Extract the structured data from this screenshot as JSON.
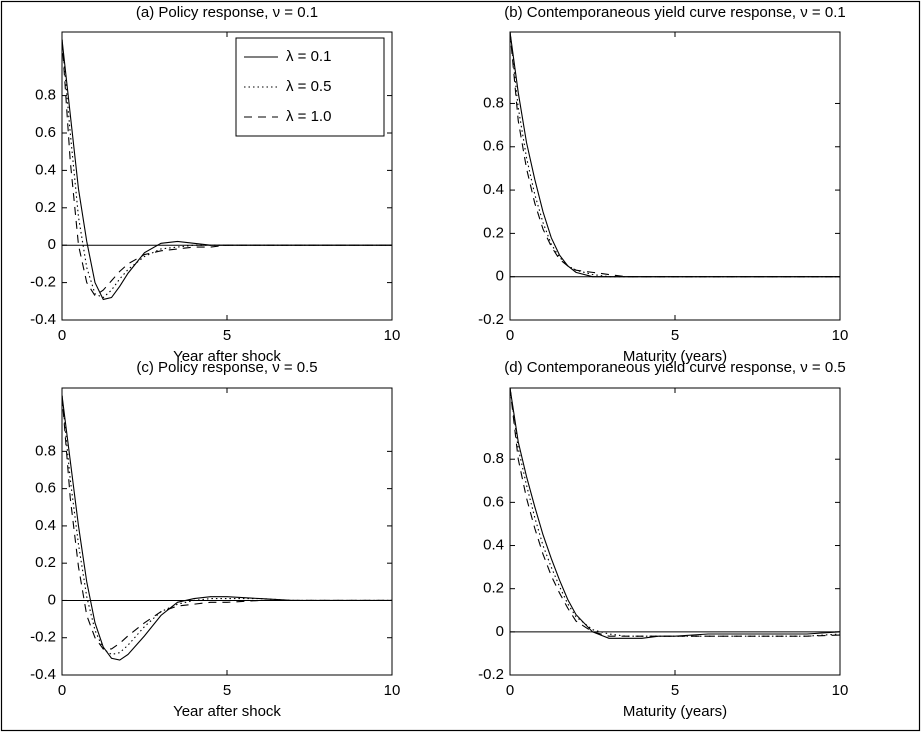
{
  "chart_data": [
    {
      "type": "line",
      "title": "(a) Policy response, ν = 0.1",
      "x_label": "Year after shock",
      "x": [
        0,
        0.25,
        0.5,
        0.75,
        1,
        1.25,
        1.5,
        1.75,
        2,
        2.5,
        3,
        3.5,
        4,
        4.5,
        5,
        6,
        7,
        8,
        9,
        10
      ],
      "xlim": [
        0,
        10
      ],
      "xticks": [
        0,
        5,
        10
      ],
      "ylim": [
        -0.4,
        1.14
      ],
      "yticks": [
        -0.4,
        -0.2,
        0,
        0.2,
        0.4,
        0.6,
        0.8
      ],
      "legend": "upper right",
      "series": [
        {
          "name": "λ = 0.1",
          "color": "#000000",
          "style": "solid",
          "values": [
            1.1,
            0.7,
            0.3,
            0.02,
            -0.2,
            -0.29,
            -0.28,
            -0.22,
            -0.15,
            -0.04,
            0.01,
            0.02,
            0.01,
            0,
            0,
            0,
            0,
            0,
            0,
            0
          ]
        },
        {
          "name": "λ = 0.5",
          "color": "#000000",
          "style": "dotted",
          "values": [
            1.1,
            0.6,
            0.15,
            -0.12,
            -0.26,
            -0.28,
            -0.24,
            -0.18,
            -0.13,
            -0.06,
            -0.02,
            -0.01,
            0,
            0,
            0,
            0,
            0,
            0,
            0,
            0
          ]
        },
        {
          "name": "λ = 1.0",
          "color": "#000000",
          "style": "dashed",
          "values": [
            1.1,
            0.45,
            0,
            -0.2,
            -0.27,
            -0.24,
            -0.19,
            -0.14,
            -0.1,
            -0.05,
            -0.03,
            -0.02,
            -0.01,
            -0.01,
            0,
            0,
            0,
            0,
            0,
            0
          ]
        }
      ]
    },
    {
      "type": "line",
      "title": "(b) Contemporaneous yield curve response, ν = 0.1",
      "x_label": "Maturity (years)",
      "x": [
        0,
        0.25,
        0.5,
        0.75,
        1,
        1.25,
        1.5,
        1.75,
        2,
        2.5,
        3,
        3.5,
        4,
        4.5,
        5,
        6,
        7,
        8,
        9,
        10
      ],
      "xlim": [
        0,
        10
      ],
      "xticks": [
        0,
        5,
        10
      ],
      "ylim": [
        -0.2,
        1.13
      ],
      "yticks": [
        -0.2,
        0,
        0.2,
        0.4,
        0.6,
        0.8
      ],
      "series": [
        {
          "color": "#000000",
          "style": "solid",
          "values": [
            1.13,
            0.85,
            0.62,
            0.45,
            0.3,
            0.18,
            0.1,
            0.05,
            0.02,
            0,
            0,
            0,
            0,
            0,
            0,
            0,
            0,
            0,
            0,
            0
          ]
        },
        {
          "color": "#000000",
          "style": "dotted",
          "values": [
            1.13,
            0.78,
            0.55,
            0.38,
            0.25,
            0.15,
            0.09,
            0.05,
            0.03,
            0.01,
            0,
            0,
            0,
            0,
            0,
            0,
            0,
            0,
            0,
            0
          ]
        },
        {
          "color": "#000000",
          "style": "dashed",
          "values": [
            1.13,
            0.72,
            0.5,
            0.34,
            0.22,
            0.14,
            0.08,
            0.05,
            0.03,
            0.02,
            0.01,
            0,
            0,
            0,
            0,
            0,
            0,
            0,
            0,
            0
          ]
        }
      ]
    },
    {
      "type": "line",
      "title": "(c) Policy response, ν = 0.5",
      "x_label": "Year after shock",
      "x": [
        0,
        0.25,
        0.5,
        0.75,
        1,
        1.25,
        1.5,
        1.75,
        2,
        2.5,
        3,
        3.5,
        4,
        4.5,
        5,
        6,
        7,
        8,
        9,
        10
      ],
      "xlim": [
        0,
        10
      ],
      "xticks": [
        0,
        5,
        10
      ],
      "ylim": [
        -0.4,
        1.14
      ],
      "yticks": [
        -0.4,
        -0.2,
        0,
        0.2,
        0.4,
        0.6,
        0.8
      ],
      "series": [
        {
          "color": "#000000",
          "style": "solid",
          "values": [
            1.1,
            0.75,
            0.4,
            0.1,
            -0.12,
            -0.25,
            -0.31,
            -0.32,
            -0.29,
            -0.19,
            -0.08,
            -0.01,
            0.01,
            0.02,
            0.02,
            0.01,
            0,
            0,
            0,
            0
          ]
        },
        {
          "color": "#000000",
          "style": "dotted",
          "values": [
            1.1,
            0.65,
            0.3,
            0.02,
            -0.16,
            -0.26,
            -0.29,
            -0.28,
            -0.24,
            -0.14,
            -0.06,
            -0.02,
            0,
            0.01,
            0.01,
            0.01,
            0,
            0,
            0,
            0
          ]
        },
        {
          "color": "#000000",
          "style": "dashed",
          "values": [
            1.1,
            0.55,
            0.18,
            -0.08,
            -0.2,
            -0.26,
            -0.26,
            -0.23,
            -0.19,
            -0.12,
            -0.06,
            -0.03,
            -0.02,
            -0.01,
            -0.01,
            0,
            0,
            0,
            0,
            0
          ]
        }
      ]
    },
    {
      "type": "line",
      "title": "(d) Contemporaneous yield curve response, ν = 0.5",
      "x_label": "Maturity (years)",
      "x": [
        0,
        0.25,
        0.5,
        0.75,
        1,
        1.25,
        1.5,
        1.75,
        2,
        2.5,
        3,
        3.5,
        4,
        4.5,
        5,
        6,
        7,
        8,
        9,
        10
      ],
      "xlim": [
        0,
        10
      ],
      "xticks": [
        0,
        5,
        10
      ],
      "ylim": [
        -0.2,
        1.13
      ],
      "yticks": [
        -0.2,
        0,
        0.2,
        0.4,
        0.6,
        0.8
      ],
      "series": [
        {
          "color": "#000000",
          "style": "solid",
          "values": [
            1.13,
            0.88,
            0.72,
            0.58,
            0.45,
            0.34,
            0.24,
            0.15,
            0.08,
            0,
            -0.03,
            -0.03,
            -0.03,
            -0.02,
            -0.02,
            -0.01,
            -0.01,
            -0.01,
            -0.01,
            0
          ]
        },
        {
          "color": "#000000",
          "style": "dotted",
          "values": [
            1.13,
            0.85,
            0.68,
            0.53,
            0.4,
            0.3,
            0.21,
            0.13,
            0.07,
            0.01,
            -0.01,
            -0.02,
            -0.02,
            -0.02,
            -0.02,
            -0.02,
            -0.02,
            -0.02,
            -0.02,
            -0.01
          ]
        },
        {
          "color": "#000000",
          "style": "dashed",
          "values": [
            1.13,
            0.8,
            0.62,
            0.48,
            0.36,
            0.26,
            0.18,
            0.11,
            0.05,
            0,
            -0.02,
            -0.02,
            -0.02,
            -0.02,
            -0.02,
            -0.02,
            -0.02,
            -0.02,
            -0.02,
            -0.015
          ]
        }
      ]
    }
  ]
}
